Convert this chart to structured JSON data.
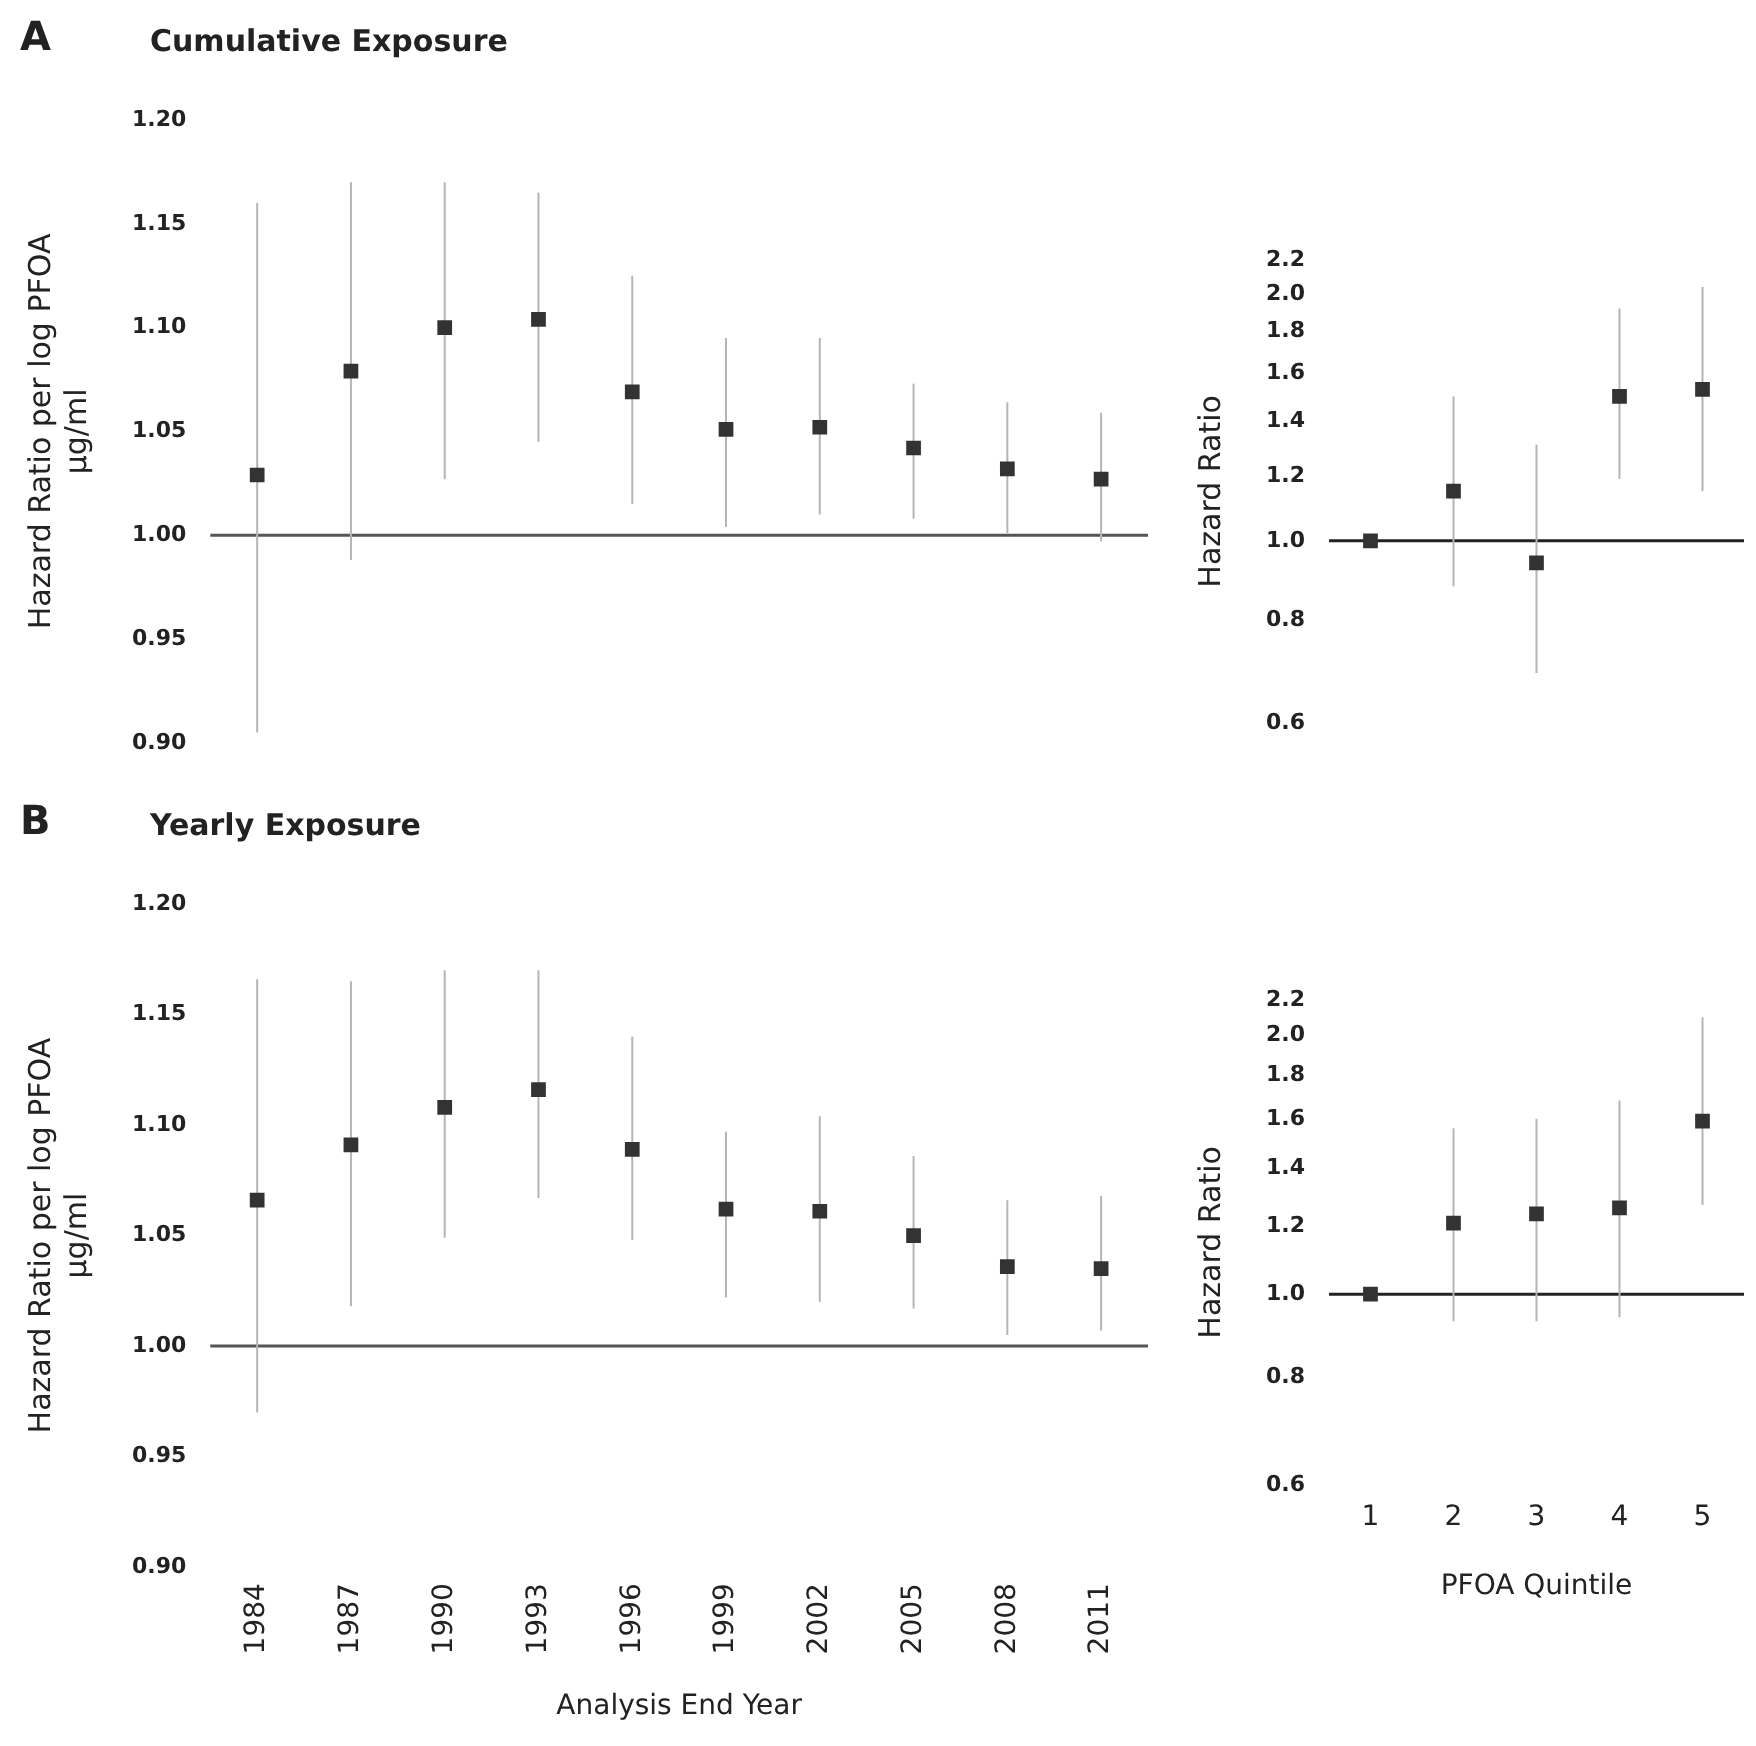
{
  "chart_data": [
    {
      "type": "scatter",
      "title": "Cumulative Exposure",
      "annotations": [
        "A"
      ],
      "ylabel": "Hazard Ratio per log PFOA µg/ml",
      "categories": [
        "1984",
        "1987",
        "1990",
        "1993",
        "1996",
        "1999",
        "2002",
        "2005",
        "2008",
        "2011"
      ],
      "values": [
        1.029,
        1.079,
        1.1,
        1.104,
        1.069,
        1.051,
        1.052,
        1.042,
        1.032,
        1.027
      ],
      "errors": [
        [
          0.905,
          1.16
        ],
        [
          0.988,
          1.17
        ],
        [
          1.027,
          1.17
        ],
        [
          1.045,
          1.165
        ],
        [
          1.015,
          1.125
        ],
        [
          1.004,
          1.095
        ],
        [
          1.01,
          1.095
        ],
        [
          1.008,
          1.073
        ],
        [
          1.001,
          1.064
        ],
        [
          0.997,
          1.059
        ]
      ],
      "color": "#333333",
      "marker": "square",
      "ylim": [
        0.9,
        1.2
      ],
      "yticks": [
        {
          "value": 0.9,
          "label": "0.90"
        },
        {
          "value": 0.95,
          "label": "0.95"
        },
        {
          "value": 1.0,
          "label": "1.00"
        },
        {
          "value": 1.05,
          "label": "1.05"
        },
        {
          "value": 1.1,
          "label": "1.10"
        },
        {
          "value": 1.15,
          "label": "1.15"
        },
        {
          "value": 1.2,
          "label": "1.20"
        }
      ],
      "ref_lines": [
        {
          "axis": "y",
          "value": 1.0,
          "color": "#555555"
        }
      ],
      "tick_labels": "y",
      "grid": false,
      "legend": false
    },
    {
      "type": "scatter",
      "ylabel": "Hazard Ratio",
      "categories": [
        "1",
        "2",
        "3",
        "4",
        "5"
      ],
      "values": [
        1.0,
        1.15,
        0.94,
        1.5,
        1.53
      ],
      "errors": [
        null,
        [
          0.88,
          1.5
        ],
        [
          0.69,
          1.31
        ],
        [
          1.19,
          1.92
        ],
        [
          1.15,
          2.04
        ]
      ],
      "color": "#333333",
      "marker": "square",
      "log": "y",
      "ylim": [
        0.6,
        2.2
      ],
      "yticks": [
        {
          "value": 0.6,
          "label": "0.6"
        },
        {
          "value": 0.8,
          "label": "0.8"
        },
        {
          "value": 1.0,
          "label": "1.0"
        },
        {
          "value": 1.2,
          "label": "1.2"
        },
        {
          "value": 1.4,
          "label": "1.4"
        },
        {
          "value": 1.6,
          "label": "1.6"
        },
        {
          "value": 1.8,
          "label": "1.8"
        },
        {
          "value": 2.0,
          "label": "2.0"
        },
        {
          "value": 2.2,
          "label": "2.2"
        }
      ],
      "ref_lines": [
        {
          "axis": "y",
          "value": 1.0,
          "color": "#222222"
        }
      ],
      "tick_labels": "y",
      "grid": false,
      "legend": false
    },
    {
      "type": "scatter",
      "title": "Yearly Exposure",
      "annotations": [
        "B"
      ],
      "ylabel": "Hazard Ratio per log PFOA µg/ml",
      "xlabel": "Analysis End Year",
      "categories": [
        "1984",
        "1987",
        "1990",
        "1993",
        "1996",
        "1999",
        "2002",
        "2005",
        "2008",
        "2011"
      ],
      "values": [
        1.066,
        1.091,
        1.108,
        1.116,
        1.089,
        1.062,
        1.061,
        1.05,
        1.036,
        1.035
      ],
      "errors": [
        [
          0.97,
          1.166
        ],
        [
          1.018,
          1.165
        ],
        [
          1.049,
          1.17
        ],
        [
          1.067,
          1.17
        ],
        [
          1.048,
          1.14
        ],
        [
          1.022,
          1.097
        ],
        [
          1.02,
          1.104
        ],
        [
          1.017,
          1.086
        ],
        [
          1.005,
          1.066
        ],
        [
          1.007,
          1.068
        ]
      ],
      "color": "#333333",
      "marker": "square",
      "ylim": [
        0.9,
        1.2
      ],
      "yticks": [
        {
          "value": 0.9,
          "label": "0.90"
        },
        {
          "value": 0.95,
          "label": "0.95"
        },
        {
          "value": 1.0,
          "label": "1.00"
        },
        {
          "value": 1.05,
          "label": "1.05"
        },
        {
          "value": 1.1,
          "label": "1.10"
        },
        {
          "value": 1.15,
          "label": "1.15"
        },
        {
          "value": 1.2,
          "label": "1.20"
        }
      ],
      "ref_lines": [
        {
          "axis": "y",
          "value": 1.0,
          "color": "#555555"
        }
      ],
      "grid": false,
      "legend": false
    },
    {
      "type": "scatter",
      "ylabel": "Hazard Ratio",
      "xlabel": "PFOA Quintile",
      "categories": [
        "1",
        "2",
        "3",
        "4",
        "5"
      ],
      "values": [
        1.0,
        1.21,
        1.24,
        1.26,
        1.59
      ],
      "errors": [
        null,
        [
          0.93,
          1.56
        ],
        [
          0.93,
          1.6
        ],
        [
          0.94,
          1.68
        ],
        [
          1.27,
          2.1
        ]
      ],
      "color": "#333333",
      "marker": "square",
      "log": "y",
      "ylim": [
        0.6,
        2.2
      ],
      "yticks": [
        {
          "value": 0.6,
          "label": "0.6"
        },
        {
          "value": 0.8,
          "label": "0.8"
        },
        {
          "value": 1.0,
          "label": "1.0"
        },
        {
          "value": 1.2,
          "label": "1.2"
        },
        {
          "value": 1.4,
          "label": "1.4"
        },
        {
          "value": 1.6,
          "label": "1.6"
        },
        {
          "value": 1.8,
          "label": "1.8"
        },
        {
          "value": 2.0,
          "label": "2.0"
        },
        {
          "value": 2.2,
          "label": "2.2"
        }
      ],
      "ref_lines": [
        {
          "axis": "y",
          "value": 1.0,
          "color": "#222222"
        }
      ],
      "grid": false,
      "legend": false
    }
  ]
}
